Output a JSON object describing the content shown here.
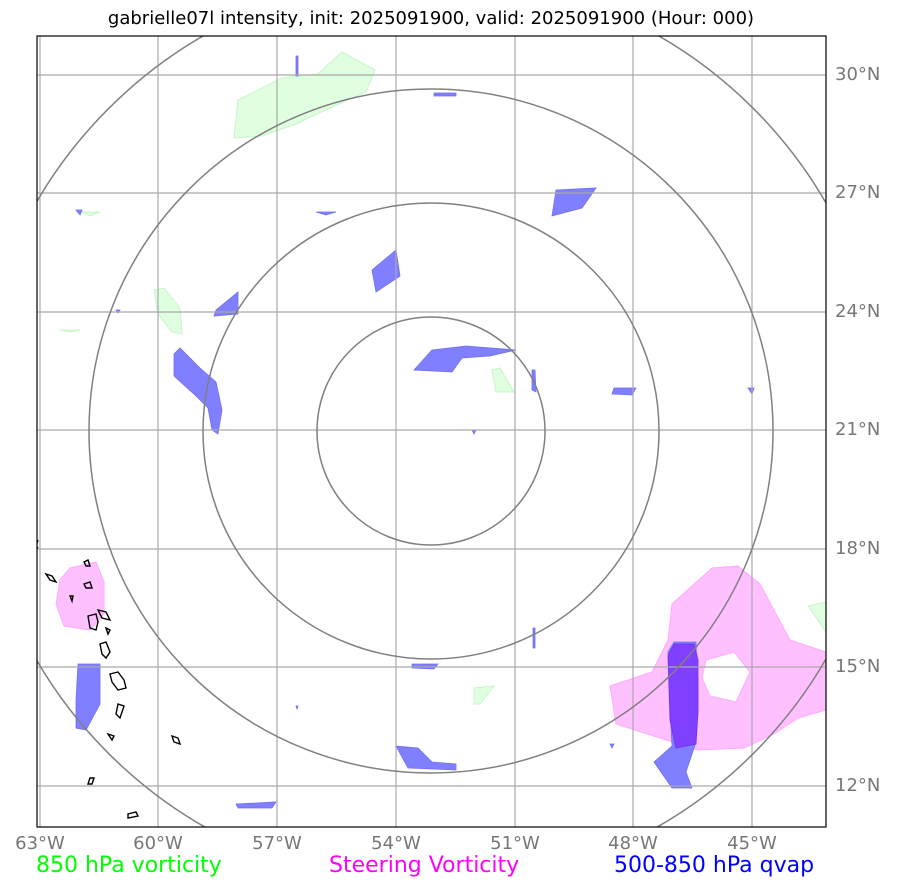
{
  "title": "gabrielle07l intensity, init: 2025091900, valid: 2025091900 (Hour: 000)",
  "lat_ticks": [
    "30°N",
    "27°N",
    "24°N",
    "21°N",
    "18°N",
    "15°N",
    "12°N"
  ],
  "lon_ticks": [
    "63°W",
    "60°W",
    "57°W",
    "54°W",
    "51°W",
    "48°W",
    "45°W"
  ],
  "legend": {
    "vorticity_850": "850 hPa vorticity",
    "steering_vorticity": "Steering Vorticity",
    "qvap_500_850": "500-850 hPa qvap"
  },
  "colors": {
    "vorticity_850": "#00ff00",
    "steering_vorticity": "#ff00ff",
    "qvap_500_850": "#0000ff"
  },
  "range_rings": {
    "center_lat": 21,
    "center_lon": -53,
    "count": 4
  }
}
